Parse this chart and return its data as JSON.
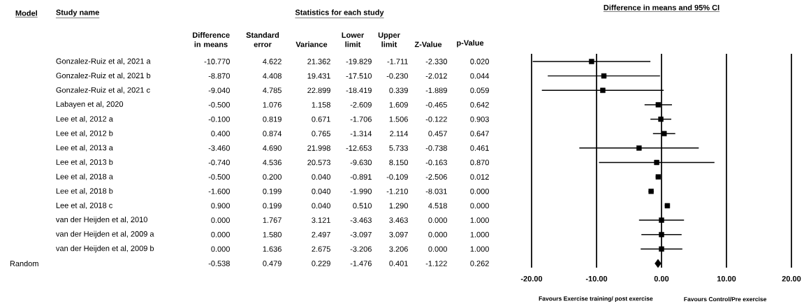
{
  "chart_data": [
    {
      "type": "other",
      "title": "Statistics for each study",
      "annotations": [
        "Model",
        "Study name"
      ],
      "categories": [
        "Gonzalez-Ruiz et al, 2021 a",
        "Gonzalez-Ruiz et al, 2021 b",
        "Gonzalez-Ruiz et al, 2021 c",
        "Labayen et al, 2020",
        "Lee et al, 2012 a",
        "Lee et al, 2012 b",
        "Lee et al, 2013 a",
        "Lee et al, 2013 b",
        "Lee et al, 2018 a",
        "Lee et al, 2018 b",
        "Lee et al, 2018 c",
        "van der Heijden et al, 2010",
        "van der Heijden et al, 2009 a",
        "van der Heijden et al, 2009 b",
        "Random"
      ],
      "series": [
        {
          "name": "Difference in means",
          "values": [
            -10.77,
            -8.87,
            -9.04,
            -0.5,
            -0.1,
            0.4,
            -3.46,
            -0.74,
            -0.5,
            -1.6,
            0.9,
            0.0,
            0.0,
            0.0,
            -0.538
          ],
          "value_labels": [
            "-10.770",
            "-8.870",
            "-9.040",
            "-0.500",
            "-0.100",
            "0.400",
            "-3.460",
            "-0.740",
            "-0.500",
            "-1.600",
            "0.900",
            "0.000",
            "0.000",
            "0.000",
            "-0.538"
          ]
        },
        {
          "name": "Standard error",
          "values": [
            4.622,
            4.408,
            4.785,
            1.076,
            0.819,
            0.874,
            4.69,
            4.536,
            0.2,
            0.199,
            0.199,
            1.767,
            1.58,
            1.636,
            0.479
          ],
          "value_labels": [
            "4.622",
            "4.408",
            "4.785",
            "1.076",
            "0.819",
            "0.874",
            "4.690",
            "4.536",
            "0.200",
            "0.199",
            "0.199",
            "1.767",
            "1.580",
            "1.636",
            "0.479"
          ]
        },
        {
          "name": "Variance",
          "values": [
            21.362,
            19.431,
            22.899,
            1.158,
            0.671,
            0.765,
            21.998,
            20.573,
            0.04,
            0.04,
            0.04,
            3.121,
            2.497,
            2.675,
            0.229
          ],
          "value_labels": [
            "21.362",
            "19.431",
            "22.899",
            "1.158",
            "0.671",
            "0.765",
            "21.998",
            "20.573",
            "0.040",
            "0.040",
            "0.040",
            "3.121",
            "2.497",
            "2.675",
            "0.229"
          ]
        },
        {
          "name": "Lower limit",
          "values": [
            -19.829,
            -17.51,
            -18.419,
            -2.609,
            -1.706,
            -1.314,
            -12.653,
            -9.63,
            -0.891,
            -1.99,
            0.51,
            -3.463,
            -3.097,
            -3.206,
            -1.476
          ],
          "value_labels": [
            "-19.829",
            "-17.510",
            "-18.419",
            "-2.609",
            "-1.706",
            "-1.314",
            "-12.653",
            "-9.630",
            "-0.891",
            "-1.990",
            "0.510",
            "-3.463",
            "-3.097",
            "-3.206",
            "-1.476"
          ]
        },
        {
          "name": "Upper limit",
          "values": [
            -1.711,
            -0.23,
            0.339,
            1.609,
            1.506,
            2.114,
            5.733,
            8.15,
            -0.109,
            -1.21,
            1.29,
            3.463,
            3.097,
            3.206,
            0.401
          ],
          "value_labels": [
            "-1.711",
            "-0.230",
            "0.339",
            "1.609",
            "1.506",
            "2.114",
            "5.733",
            "8.150",
            "-0.109",
            "-1.210",
            "1.290",
            "3.463",
            "3.097",
            "3.206",
            "0.401"
          ]
        },
        {
          "name": "Z-Value",
          "values": [
            -2.33,
            -2.012,
            -1.889,
            -0.465,
            -0.122,
            0.457,
            -0.738,
            -0.163,
            -2.506,
            -8.031,
            4.518,
            0.0,
            0.0,
            0.0,
            -1.122
          ],
          "value_labels": [
            "-2.330",
            "-2.012",
            "-1.889",
            "-0.465",
            "-0.122",
            "0.457",
            "-0.738",
            "-0.163",
            "-2.506",
            "-8.031",
            "4.518",
            "0.000",
            "0.000",
            "0.000",
            "-1.122"
          ]
        },
        {
          "name": "p-Value",
          "values": [
            0.02,
            0.044,
            0.059,
            0.642,
            0.903,
            0.647,
            0.461,
            0.87,
            0.012,
            0.0,
            0.0,
            1.0,
            1.0,
            1.0,
            0.262
          ],
          "value_labels": [
            "0.020",
            "0.044",
            "0.059",
            "0.642",
            "0.903",
            "0.647",
            "0.461",
            "0.870",
            "0.012",
            "0.000",
            "0.000",
            "1.000",
            "1.000",
            "1.000",
            "0.262"
          ]
        }
      ]
    },
    {
      "type": "scatter",
      "orientation": "horizontal",
      "title": "Difference in means and 95% CI",
      "annotations": [
        "Favours Exercise training/ post exercise",
        "Favours Control/Pre exercise"
      ],
      "categories": [
        null,
        null,
        null,
        null,
        null,
        null,
        null,
        null,
        null,
        null,
        null,
        null,
        null,
        null,
        null
      ],
      "xlim": [
        -20,
        20
      ],
      "xticks": [
        {
          "value": -20,
          "label": "-20.00"
        },
        {
          "value": -10,
          "label": "-10.00"
        },
        {
          "value": 0,
          "label": "0.00"
        },
        {
          "value": 10,
          "label": "10.00"
        },
        {
          "value": 20,
          "label": "20.00"
        }
      ],
      "grid": "x",
      "tick_labels": "x",
      "series": [
        {
          "type": "scatter",
          "marker": "square",
          "color": "#000000",
          "values": [
            -10.77,
            -8.87,
            -9.04,
            -0.5,
            -0.1,
            0.4,
            -3.46,
            -0.74,
            -0.5,
            -1.6,
            0.9,
            0.0,
            0.0,
            0.0,
            null
          ],
          "errors": [
            [
              -19.829,
              -1.711
            ],
            [
              -17.51,
              -0.23
            ],
            [
              -18.419,
              0.339
            ],
            [
              -2.609,
              1.609
            ],
            [
              -1.706,
              1.506
            ],
            [
              -1.314,
              2.114
            ],
            [
              -12.653,
              5.733
            ],
            [
              -9.63,
              8.15
            ],
            [
              -0.891,
              -0.109
            ],
            [
              -1.99,
              -1.21
            ],
            [
              0.51,
              1.29
            ],
            [
              -3.463,
              3.463
            ],
            [
              -3.097,
              3.097
            ],
            [
              -3.206,
              3.206
            ],
            null
          ]
        },
        {
          "type": "scatter",
          "marker": "diamond",
          "color": "#000000",
          "values": [
            null,
            null,
            null,
            null,
            null,
            null,
            null,
            null,
            null,
            null,
            null,
            null,
            null,
            null,
            -0.538
          ]
        }
      ]
    }
  ]
}
